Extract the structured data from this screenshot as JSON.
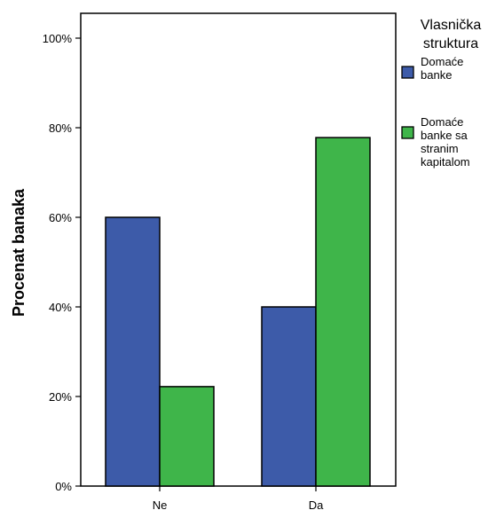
{
  "chart_data": {
    "type": "bar",
    "categories": [
      "Ne",
      "Da"
    ],
    "series": [
      {
        "name": "Domaće banke",
        "label_lines": [
          "Domaće",
          "banke"
        ],
        "color": "#3D5BA9",
        "values": [
          60,
          40
        ]
      },
      {
        "name": "Domaće banke sa stranim kapitalom",
        "label_lines": [
          "Domaće",
          "banke sa",
          "stranim",
          "kapitalom"
        ],
        "color": "#3FB54A",
        "values": [
          22.2,
          77.8
        ]
      }
    ],
    "title": "",
    "xlabel": "",
    "ylabel": "Procenat banaka",
    "ylim": [
      0,
      100
    ],
    "yticks": [
      {
        "value": 0,
        "label": "0%"
      },
      {
        "value": 20,
        "label": "20%"
      },
      {
        "value": 40,
        "label": "40%"
      },
      {
        "value": 60,
        "label": "60%"
      },
      {
        "value": 80,
        "label": "80%"
      },
      {
        "value": 100,
        "label": "100%"
      }
    ],
    "legend": {
      "title_lines": [
        "Vlasnička",
        "struktura"
      ],
      "placement": "right"
    },
    "grid": false
  }
}
